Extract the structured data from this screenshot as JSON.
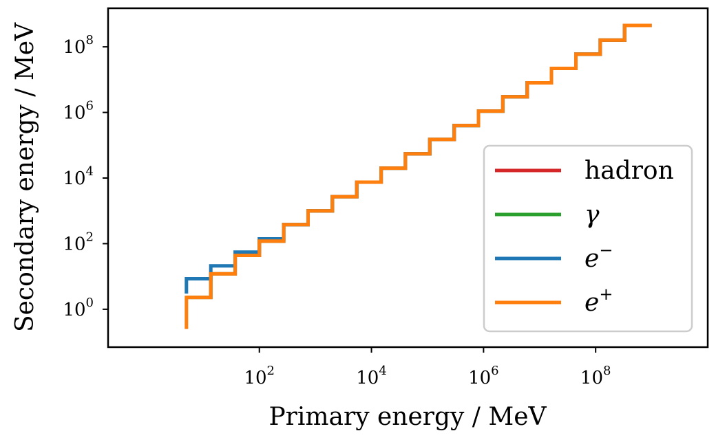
{
  "chart_data": {
    "type": "line",
    "xlabel": "Primary energy / MeV",
    "ylabel": "Secondary energy / MeV",
    "xscale": "log",
    "yscale": "log",
    "xlim": [
      0.2,
      10000000000.0
    ],
    "ylim": [
      0.07,
      1500000000.0
    ],
    "x_ticks": [
      {
        "value": 100,
        "base": "10",
        "exp": "2"
      },
      {
        "value": 10000,
        "base": "10",
        "exp": "4"
      },
      {
        "value": 1000000,
        "base": "10",
        "exp": "6"
      },
      {
        "value": 100000000,
        "base": "10",
        "exp": "8"
      }
    ],
    "y_ticks": [
      {
        "value": 1,
        "base": "10",
        "exp": "0"
      },
      {
        "value": 100,
        "base": "10",
        "exp": "2"
      },
      {
        "value": 10000,
        "base": "10",
        "exp": "4"
      },
      {
        "value": 1000000,
        "base": "10",
        "exp": "6"
      },
      {
        "value": 100000000,
        "base": "10",
        "exp": "8"
      }
    ],
    "grid": false,
    "legend_position": "lower-right",
    "series": [
      {
        "name": "hadron",
        "legend_base": "hadron",
        "legend_sup": "",
        "legend_math": false,
        "color": "#d62728",
        "draw_style": "steps",
        "x": [
          5,
          13.6,
          37,
          100,
          272,
          740,
          2010,
          5470,
          14900,
          40400,
          110000,
          299000,
          813000,
          2210000,
          6010000,
          16300000,
          44400000,
          121000000,
          329000000,
          1000000000
        ],
        "y": [
          2.3,
          12,
          44,
          120,
          380,
          1000,
          2700,
          7500,
          20000,
          55000,
          150000,
          400000,
          1100000,
          3000000,
          8000000,
          22000000,
          60000000,
          160000000,
          450000000,
          450000000
        ]
      },
      {
        "name": "γ",
        "legend_base": "γ",
        "legend_sup": "",
        "legend_math": true,
        "color": "#2ca02c",
        "draw_style": "steps",
        "x": [
          5,
          13.6,
          37,
          100,
          272,
          740,
          2010,
          5470,
          14900,
          40400,
          110000,
          299000,
          813000,
          2210000,
          6010000,
          16300000,
          44400000,
          121000000,
          329000000,
          1000000000
        ],
        "y": [
          2.3,
          12,
          44,
          120,
          380,
          1000,
          2700,
          7500,
          20000,
          55000,
          150000,
          400000,
          1100000,
          3000000,
          8000000,
          22000000,
          60000000,
          160000000,
          450000000,
          450000000
        ]
      },
      {
        "name": "e−",
        "legend_base": "e",
        "legend_sup": "−",
        "legend_math": true,
        "color": "#1f77b4",
        "draw_style": "steps",
        "x": [
          5,
          5,
          13.6,
          37,
          100,
          272,
          740,
          2010,
          5470,
          14900,
          40400,
          110000,
          299000,
          813000,
          2210000,
          6010000,
          16300000,
          44400000,
          121000000,
          329000000,
          1000000000
        ],
        "y": [
          3,
          8.5,
          21,
          55,
          140,
          380,
          1000,
          2700,
          7500,
          20000,
          55000,
          150000,
          400000,
          1100000,
          3000000,
          8000000,
          22000000,
          60000000,
          160000000,
          450000000,
          450000000
        ]
      },
      {
        "name": "e+",
        "legend_base": "e",
        "legend_sup": "+",
        "legend_math": true,
        "color": "#ff7f0e",
        "draw_style": "steps",
        "x": [
          5,
          5,
          13.6,
          37,
          100,
          272,
          740,
          2010,
          5470,
          14900,
          40400,
          110000,
          299000,
          813000,
          2210000,
          6010000,
          16300000,
          44400000,
          121000000,
          329000000,
          1000000000
        ],
        "y": [
          0.25,
          2.3,
          12,
          44,
          120,
          380,
          1000,
          2700,
          7500,
          20000,
          55000,
          150000,
          400000,
          1100000,
          3000000,
          8000000,
          22000000,
          60000000,
          160000000,
          450000000,
          450000000
        ]
      }
    ]
  }
}
